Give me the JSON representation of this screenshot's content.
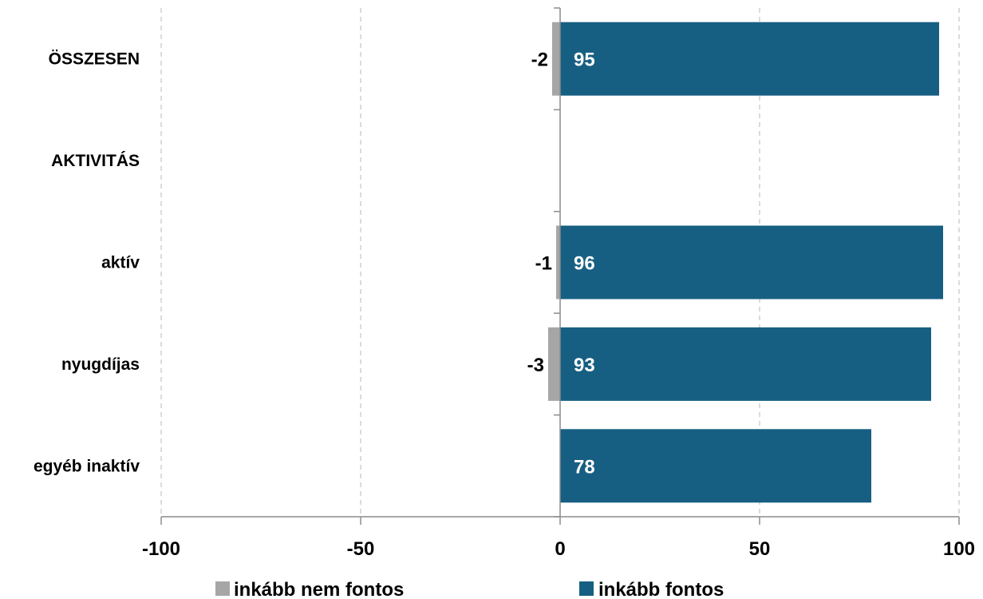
{
  "chart_data": {
    "type": "bar",
    "orientation": "horizontal",
    "stacked": "diverging",
    "categories": [
      "ÖSSZESEN",
      "AKTIVITÁS",
      "aktív",
      "nyugdíjas",
      "egyéb inaktív"
    ],
    "series": [
      {
        "name": "inkább nem fontos",
        "color": "#a6a6a6",
        "values": [
          -2,
          null,
          -1,
          -3,
          0
        ],
        "labels": [
          "-2",
          "",
          "-1",
          "-3",
          ""
        ]
      },
      {
        "name": "inkább fontos",
        "color": "#175f82",
        "values": [
          95,
          null,
          96,
          93,
          78
        ],
        "labels": [
          "95",
          "",
          "96",
          "93",
          "78"
        ]
      }
    ],
    "xlim": [
      -100,
      100
    ],
    "xticks": [
      -100,
      -50,
      0,
      50,
      100
    ],
    "xtick_labels": [
      "-100",
      "-50",
      "0",
      "50",
      "100"
    ],
    "grid": "vertical dashed",
    "legend": "bottom",
    "title": "",
    "xlabel": "",
    "ylabel": ""
  }
}
